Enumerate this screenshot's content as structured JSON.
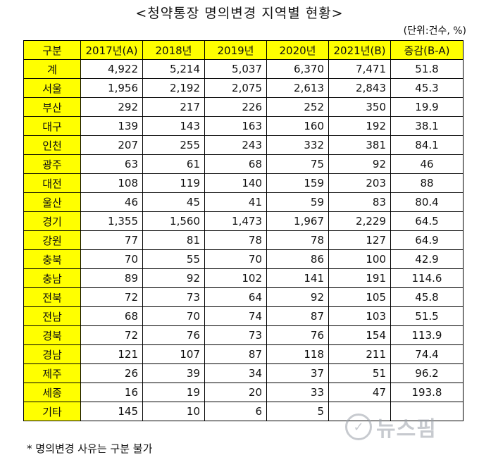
{
  "title": "<청약통장 명의변경 지역별 현황>",
  "unit": "(단위:건수, %)",
  "columns": [
    "구분",
    "2017년(A)",
    "2018년",
    "2019년",
    "2020년",
    "2021년(B)",
    "증감(B-A)"
  ],
  "rows": [
    {
      "region": "계",
      "values": [
        "4,922",
        "5,214",
        "5,037",
        "6,370",
        "7,471",
        "51.8"
      ]
    },
    {
      "region": "서울",
      "values": [
        "1,956",
        "2,192",
        "2,075",
        "2,613",
        "2,843",
        "45.3"
      ]
    },
    {
      "region": "부산",
      "values": [
        "292",
        "217",
        "226",
        "252",
        "350",
        "19.9"
      ]
    },
    {
      "region": "대구",
      "values": [
        "139",
        "143",
        "163",
        "160",
        "192",
        "38.1"
      ]
    },
    {
      "region": "인천",
      "values": [
        "207",
        "255",
        "243",
        "332",
        "381",
        "84.1"
      ]
    },
    {
      "region": "광주",
      "values": [
        "63",
        "61",
        "68",
        "75",
        "92",
        "46"
      ]
    },
    {
      "region": "대전",
      "values": [
        "108",
        "119",
        "140",
        "159",
        "203",
        "88"
      ]
    },
    {
      "region": "울산",
      "values": [
        "46",
        "45",
        "41",
        "59",
        "83",
        "80.4"
      ]
    },
    {
      "region": "경기",
      "values": [
        "1,355",
        "1,560",
        "1,473",
        "1,967",
        "2,229",
        "64.5"
      ]
    },
    {
      "region": "강원",
      "values": [
        "77",
        "81",
        "78",
        "78",
        "127",
        "64.9"
      ]
    },
    {
      "region": "충북",
      "values": [
        "70",
        "55",
        "70",
        "86",
        "100",
        "42.9"
      ]
    },
    {
      "region": "충남",
      "values": [
        "89",
        "92",
        "102",
        "141",
        "191",
        "114.6"
      ]
    },
    {
      "region": "전북",
      "values": [
        "72",
        "73",
        "64",
        "92",
        "105",
        "45.8"
      ]
    },
    {
      "region": "전남",
      "values": [
        "68",
        "70",
        "74",
        "87",
        "103",
        "51.5"
      ]
    },
    {
      "region": "경북",
      "values": [
        "72",
        "76",
        "73",
        "76",
        "154",
        "113.9"
      ]
    },
    {
      "region": "경남",
      "values": [
        "121",
        "107",
        "87",
        "118",
        "211",
        "74.4"
      ]
    },
    {
      "region": "제주",
      "values": [
        "26",
        "39",
        "34",
        "37",
        "51",
        "96.2"
      ]
    },
    {
      "region": "세종",
      "values": [
        "16",
        "19",
        "20",
        "33",
        "47",
        "193.8"
      ]
    },
    {
      "region": "기타",
      "values": [
        "145",
        "10",
        "6",
        "5",
        "",
        ""
      ]
    }
  ],
  "footnote": "* 명의변경 사유는 구분 불가",
  "watermark": {
    "text": "뉴스핌",
    "icon": "newspim-logo-icon"
  },
  "colors": {
    "header_bg": "#ffff00",
    "border": "#000000"
  }
}
